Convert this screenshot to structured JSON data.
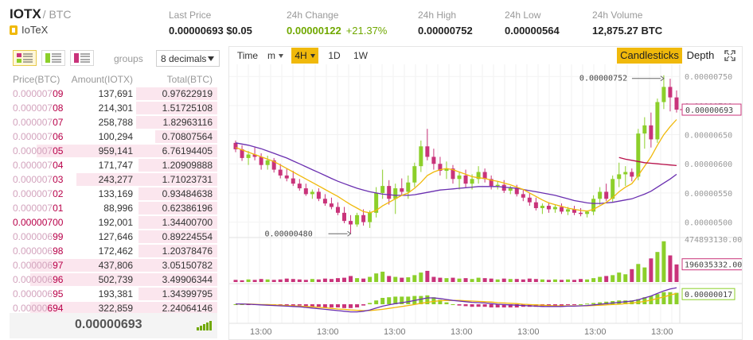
{
  "header": {
    "symbol": "IOTX",
    "quote": "/ BTC",
    "name": "IoTeX",
    "stats": [
      {
        "label": "Last Price",
        "value": "0.00000693",
        "extra": "$0.05"
      },
      {
        "label": "24h Change",
        "value": "0.00000122",
        "extra": "+21.37%"
      },
      {
        "label": "24h High",
        "value": "0.00000752"
      },
      {
        "label": "24h Low",
        "value": "0.00000564"
      },
      {
        "label": "24h Volume",
        "value": "12,875.27 BTC"
      }
    ]
  },
  "orderbook": {
    "groups_label": "groups",
    "groups_value": "8 decimals",
    "columns": [
      "Price(BTC)",
      "Amount(IOTX)",
      "Total(BTC)"
    ],
    "rows": [
      {
        "price_lo": "0.000007",
        "price_hi": "09",
        "amount": "137,691",
        "total": "0.97622919",
        "depth": 0.39
      },
      {
        "price_lo": "0.000007",
        "price_hi": "08",
        "amount": "214,301",
        "total": "1.51725108",
        "depth": 0.39
      },
      {
        "price_lo": "0.000007",
        "price_hi": "07",
        "amount": "258,788",
        "total": "1.82963116",
        "depth": 0.39
      },
      {
        "price_lo": "0.000007",
        "price_hi": "06",
        "amount": "100,294",
        "total": "0.70807564",
        "depth": 0.3
      },
      {
        "price_lo": "0.000007",
        "price_hi": "05",
        "amount": "959,141",
        "total": "6.76194405",
        "depth": 0.87
      },
      {
        "price_lo": "0.000007",
        "price_hi": "04",
        "amount": "171,747",
        "total": "1.20909888",
        "depth": 0.38
      },
      {
        "price_lo": "0.000007",
        "price_hi": "03",
        "amount": "243,277",
        "total": "1.71023731",
        "depth": 0.68
      },
      {
        "price_lo": "0.000007",
        "price_hi": "02",
        "amount": "133,169",
        "total": "0.93484638",
        "depth": 0.38
      },
      {
        "price_lo": "0.000007",
        "price_hi": "01",
        "amount": "88,996",
        "total": "0.62386196",
        "depth": 0.38
      },
      {
        "price_lo": "0.000007",
        "price_hi": "00",
        "amount": "192,001",
        "total": "1.34400700",
        "depth": 0.38,
        "all_dark": true
      },
      {
        "price_lo": "0.000006",
        "price_hi": "99",
        "amount": "127,646",
        "total": "0.89224554",
        "depth": 0.38
      },
      {
        "price_lo": "0.000006",
        "price_hi": "98",
        "amount": "172,462",
        "total": "1.20378476",
        "depth": 0.38
      },
      {
        "price_lo": "0.000006",
        "price_hi": "97",
        "amount": "437,806",
        "total": "3.05150782",
        "depth": 0.9
      },
      {
        "price_lo": "0.000006",
        "price_hi": "96",
        "amount": "502,739",
        "total": "3.49906344",
        "depth": 0.9
      },
      {
        "price_lo": "0.000006",
        "price_hi": "95",
        "amount": "193,381",
        "total": "1.34399795",
        "depth": 0.38
      },
      {
        "price_lo": "0.00000",
        "price_hi": "694",
        "amount": "322,859",
        "total": "2.24064146",
        "depth": 0.9
      }
    ],
    "last_price": "0.00000693"
  },
  "chart": {
    "intervals": [
      "Time",
      "m",
      "4H",
      "1D",
      "1W"
    ],
    "active_interval": "4H",
    "views": [
      "Candlesticks",
      "Depth"
    ],
    "active_view": "Candlesticks",
    "colors": {
      "up": "#8ccf2a",
      "down": "#c9337a",
      "ma1": "#f0b90b",
      "ma2": "#6a2fb0",
      "ma3": "#b8104a"
    },
    "price_axis": [
      "0.00000750",
      "0.00000700",
      "0.00000650",
      "0.00000600",
      "0.00000550",
      "0.00000500"
    ],
    "price_axis_values": [
      7.5e-06,
      7e-06,
      6.5e-06,
      6e-06,
      5.5e-06,
      5e-06
    ],
    "ylim": [
      4.79e-06,
      7.68e-06
    ],
    "current_price_label": "0.00000693",
    "current_price": 6.93e-06,
    "high_annotation": "0.00000752",
    "high_value": 7.52e-06,
    "low_annotation": "0.00000480",
    "low_value": 4.8e-06,
    "volume_axis_top": "474893130.00",
    "volume_current_label": "196035332.00",
    "volume_max": 474893130,
    "volume_current": 196035332,
    "macd_current_label": "0.00000017",
    "time_labels": [
      "13:00",
      "13:00",
      "13:00",
      "13:00",
      "13:00",
      "13:00",
      "13:00"
    ]
  },
  "chart_data": {
    "type": "candlestick",
    "candles": [
      {
        "o": 6.36e-06,
        "h": 6.4e-06,
        "l": 6.2e-06,
        "c": 6.25e-06
      },
      {
        "o": 6.25e-06,
        "h": 6.32e-06,
        "l": 6.05e-06,
        "c": 6.1e-06
      },
      {
        "o": 6.1e-06,
        "h": 6.22e-06,
        "l": 5.98e-06,
        "c": 6.16e-06
      },
      {
        "o": 6.16e-06,
        "h": 6.28e-06,
        "l": 6.06e-06,
        "c": 6.12e-06
      },
      {
        "o": 6.12e-06,
        "h": 6.18e-06,
        "l": 5.9e-06,
        "c": 5.98e-06
      },
      {
        "o": 5.98e-06,
        "h": 6.14e-06,
        "l": 5.9e-06,
        "c": 6.06e-06
      },
      {
        "o": 6.06e-06,
        "h": 6.1e-06,
        "l": 5.85e-06,
        "c": 5.9e-06
      },
      {
        "o": 5.9e-06,
        "h": 6e-06,
        "l": 5.75e-06,
        "c": 5.8e-06
      },
      {
        "o": 5.8e-06,
        "h": 5.92e-06,
        "l": 5.7e-06,
        "c": 5.75e-06
      },
      {
        "o": 5.75e-06,
        "h": 5.88e-06,
        "l": 5.62e-06,
        "c": 5.66e-06
      },
      {
        "o": 5.66e-06,
        "h": 5.74e-06,
        "l": 5.54e-06,
        "c": 5.58e-06
      },
      {
        "o": 5.58e-06,
        "h": 5.66e-06,
        "l": 5.45e-06,
        "c": 5.48e-06
      },
      {
        "o": 5.48e-06,
        "h": 5.56e-06,
        "l": 5.4e-06,
        "c": 5.52e-06
      },
      {
        "o": 5.52e-06,
        "h": 5.58e-06,
        "l": 5.36e-06,
        "c": 5.4e-06
      },
      {
        "o": 5.4e-06,
        "h": 5.48e-06,
        "l": 5.28e-06,
        "c": 5.32e-06
      },
      {
        "o": 5.32e-06,
        "h": 5.42e-06,
        "l": 5.22e-06,
        "c": 5.26e-06
      },
      {
        "o": 5.26e-06,
        "h": 5.34e-06,
        "l": 5.12e-06,
        "c": 5.16e-06
      },
      {
        "o": 5.16e-06,
        "h": 5.26e-06,
        "l": 4.98e-06,
        "c": 5.02e-06
      },
      {
        "o": 5.02e-06,
        "h": 5.12e-06,
        "l": 4.8e-06,
        "c": 4.96e-06
      },
      {
        "o": 4.96e-06,
        "h": 5.16e-06,
        "l": 4.92e-06,
        "c": 5.12e-06
      },
      {
        "o": 5.12e-06,
        "h": 5.22e-06,
        "l": 4.94e-06,
        "c": 5e-06
      },
      {
        "o": 5e-06,
        "h": 5.2e-06,
        "l": 4.9e-06,
        "c": 5.16e-06
      },
      {
        "o": 5.16e-06,
        "h": 5.6e-06,
        "l": 5.08e-06,
        "c": 5.5e-06
      },
      {
        "o": 5.5e-06,
        "h": 5.9e-06,
        "l": 5.4e-06,
        "c": 5.62e-06
      },
      {
        "o": 5.62e-06,
        "h": 5.72e-06,
        "l": 5.3e-06,
        "c": 5.4e-06
      },
      {
        "o": 5.4e-06,
        "h": 5.66e-06,
        "l": 5.14e-06,
        "c": 5.58e-06
      },
      {
        "o": 5.58e-06,
        "h": 5.75e-06,
        "l": 5.45e-06,
        "c": 5.52e-06
      },
      {
        "o": 5.52e-06,
        "h": 5.8e-06,
        "l": 5.4e-06,
        "c": 5.68e-06
      },
      {
        "o": 5.68e-06,
        "h": 6.02e-06,
        "l": 5.6e-06,
        "c": 5.96e-06
      },
      {
        "o": 5.96e-06,
        "h": 6.4e-06,
        "l": 5.86e-06,
        "c": 6.3e-06
      },
      {
        "o": 6.3e-06,
        "h": 6.6e-06,
        "l": 6.06e-06,
        "c": 6.12e-06
      },
      {
        "o": 6.12e-06,
        "h": 6.26e-06,
        "l": 5.9e-06,
        "c": 6e-06
      },
      {
        "o": 6e-06,
        "h": 6.12e-06,
        "l": 5.8e-06,
        "c": 5.88e-06
      },
      {
        "o": 5.88e-06,
        "h": 6.04e-06,
        "l": 5.74e-06,
        "c": 5.92e-06
      },
      {
        "o": 5.92e-06,
        "h": 5.98e-06,
        "l": 5.66e-06,
        "c": 5.74e-06
      },
      {
        "o": 5.74e-06,
        "h": 5.86e-06,
        "l": 5.56e-06,
        "c": 5.8e-06
      },
      {
        "o": 5.8e-06,
        "h": 5.9e-06,
        "l": 5.6e-06,
        "c": 5.66e-06
      },
      {
        "o": 5.66e-06,
        "h": 5.82e-06,
        "l": 5.56e-06,
        "c": 5.74e-06
      },
      {
        "o": 5.74e-06,
        "h": 5.96e-06,
        "l": 5.66e-06,
        "c": 5.86e-06
      },
      {
        "o": 5.86e-06,
        "h": 5.92e-06,
        "l": 5.68e-06,
        "c": 5.74e-06
      },
      {
        "o": 5.74e-06,
        "h": 5.8e-06,
        "l": 5.56e-06,
        "c": 5.62e-06
      },
      {
        "o": 5.62e-06,
        "h": 5.7e-06,
        "l": 5.56e-06,
        "c": 5.64e-06
      },
      {
        "o": 5.64e-06,
        "h": 5.72e-06,
        "l": 5.5e-06,
        "c": 5.54e-06
      },
      {
        "o": 5.54e-06,
        "h": 5.62e-06,
        "l": 5.48e-06,
        "c": 5.58e-06
      },
      {
        "o": 5.58e-06,
        "h": 5.64e-06,
        "l": 5.44e-06,
        "c": 5.48e-06
      },
      {
        "o": 5.48e-06,
        "h": 5.56e-06,
        "l": 5.36e-06,
        "c": 5.42e-06
      },
      {
        "o": 5.42e-06,
        "h": 5.5e-06,
        "l": 5.28e-06,
        "c": 5.34e-06
      },
      {
        "o": 5.34e-06,
        "h": 5.42e-06,
        "l": 5.2e-06,
        "c": 5.24e-06
      },
      {
        "o": 5.24e-06,
        "h": 5.32e-06,
        "l": 5.14e-06,
        "c": 5.28e-06
      },
      {
        "o": 5.28e-06,
        "h": 5.34e-06,
        "l": 5.16e-06,
        "c": 5.22e-06
      },
      {
        "o": 5.22e-06,
        "h": 5.3e-06,
        "l": 5.16e-06,
        "c": 5.26e-06
      },
      {
        "o": 5.26e-06,
        "h": 5.32e-06,
        "l": 5.14e-06,
        "c": 5.18e-06
      },
      {
        "o": 5.18e-06,
        "h": 5.26e-06,
        "l": 5.12e-06,
        "c": 5.22e-06
      },
      {
        "o": 5.22e-06,
        "h": 5.28e-06,
        "l": 5.12e-06,
        "c": 5.16e-06
      },
      {
        "o": 5.16e-06,
        "h": 5.24e-06,
        "l": 5.1e-06,
        "c": 5.14e-06
      },
      {
        "o": 5.14e-06,
        "h": 5.2e-06,
        "l": 5.08e-06,
        "c": 5.18e-06
      },
      {
        "o": 5.18e-06,
        "h": 5.46e-06,
        "l": 5.12e-06,
        "c": 5.4e-06
      },
      {
        "o": 5.4e-06,
        "h": 5.6e-06,
        "l": 5.3e-06,
        "c": 5.52e-06
      },
      {
        "o": 5.52e-06,
        "h": 5.66e-06,
        "l": 5.36e-06,
        "c": 5.4e-06
      },
      {
        "o": 5.4e-06,
        "h": 5.8e-06,
        "l": 5.34e-06,
        "c": 5.74e-06
      },
      {
        "o": 5.74e-06,
        "h": 6.02e-06,
        "l": 5.6e-06,
        "c": 5.82e-06
      },
      {
        "o": 5.82e-06,
        "h": 5.96e-06,
        "l": 5.62e-06,
        "c": 5.86e-06
      },
      {
        "o": 5.86e-06,
        "h": 5.92e-06,
        "l": 5.7e-06,
        "c": 5.78e-06
      },
      {
        "o": 5.78e-06,
        "h": 6.6e-06,
        "l": 5.72e-06,
        "c": 6.52e-06
      },
      {
        "o": 6.52e-06,
        "h": 6.8e-06,
        "l": 6.26e-06,
        "c": 6.66e-06
      },
      {
        "o": 6.66e-06,
        "h": 6.88e-06,
        "l": 6.28e-06,
        "c": 6.42e-06
      },
      {
        "o": 6.42e-06,
        "h": 7.12e-06,
        "l": 6.36e-06,
        "c": 7.06e-06
      },
      {
        "o": 7.06e-06,
        "h": 7.52e-06,
        "l": 6.94e-06,
        "c": 7.32e-06
      },
      {
        "o": 7.32e-06,
        "h": 7.46e-06,
        "l": 6.9e-06,
        "c": 7.14e-06
      },
      {
        "o": 7.14e-06,
        "h": 7.26e-06,
        "l": 6.88e-06,
        "c": 6.93e-06
      }
    ],
    "volumes": [
      0.05,
      0.04,
      0.06,
      0.05,
      0.07,
      0.06,
      0.05,
      0.06,
      0.08,
      0.07,
      0.06,
      0.05,
      0.07,
      0.06,
      0.08,
      0.07,
      0.09,
      0.1,
      0.14,
      0.09,
      0.08,
      0.12,
      0.2,
      0.24,
      0.14,
      0.12,
      0.1,
      0.11,
      0.16,
      0.22,
      0.26,
      0.12,
      0.1,
      0.09,
      0.1,
      0.08,
      0.09,
      0.07,
      0.1,
      0.09,
      0.08,
      0.06,
      0.08,
      0.07,
      0.07,
      0.06,
      0.08,
      0.07,
      0.06,
      0.05,
      0.06,
      0.05,
      0.06,
      0.05,
      0.07,
      0.06,
      0.09,
      0.12,
      0.14,
      0.16,
      0.22,
      0.18,
      0.3,
      0.42,
      0.34,
      0.55,
      0.7,
      0.95,
      0.62,
      0.41
    ],
    "ma7": [
      6.28e-06,
      6.24e-06,
      6.2e-06,
      6.16e-06,
      6.12e-06,
      6.08e-06,
      6.04e-06,
      5.98e-06,
      5.92e-06,
      5.86e-06,
      5.8e-06,
      5.74e-06,
      5.68e-06,
      5.62e-06,
      5.56e-06,
      5.5e-06,
      5.44e-06,
      5.37e-06,
      5.3e-06,
      5.24e-06,
      5.18e-06,
      5.16e-06,
      5.2e-06,
      5.28e-06,
      5.34e-06,
      5.4e-06,
      5.46e-06,
      5.5e-06,
      5.58e-06,
      5.68e-06,
      5.8e-06,
      5.86e-06,
      5.9e-06,
      5.92e-06,
      5.9e-06,
      5.86e-06,
      5.82e-06,
      5.78e-06,
      5.76e-06,
      5.75e-06,
      5.72e-06,
      5.7e-06,
      5.67e-06,
      5.64e-06,
      5.6e-06,
      5.56e-06,
      5.5e-06,
      5.44e-06,
      5.38e-06,
      5.33e-06,
      5.3e-06,
      5.27e-06,
      5.24e-06,
      5.22e-06,
      5.2e-06,
      5.19e-06,
      5.22e-06,
      5.28e-06,
      5.34e-06,
      5.42e-06,
      5.52e-06,
      5.6e-06,
      5.66e-06,
      5.8e-06,
      5.96e-06,
      6.12e-06,
      6.32e-06,
      6.5e-06,
      6.64e-06,
      6.76e-06
    ],
    "ma25": [
      6.36e-06,
      6.34e-06,
      6.32e-06,
      6.29e-06,
      6.26e-06,
      6.22e-06,
      6.18e-06,
      6.14e-06,
      6.1e-06,
      6.05e-06,
      6e-06,
      5.95e-06,
      5.9e-06,
      5.85e-06,
      5.8e-06,
      5.75e-06,
      5.7e-06,
      5.66e-06,
      5.62e-06,
      5.58e-06,
      5.55e-06,
      5.52e-06,
      5.5e-06,
      5.48e-06,
      5.47e-06,
      5.46e-06,
      5.46e-06,
      5.46e-06,
      5.47e-06,
      5.49e-06,
      5.51e-06,
      5.53e-06,
      5.55e-06,
      5.56e-06,
      5.57e-06,
      5.58e-06,
      5.59e-06,
      5.6e-06,
      5.61e-06,
      5.61e-06,
      5.61e-06,
      5.61e-06,
      5.6e-06,
      5.59e-06,
      5.58e-06,
      5.56e-06,
      5.54e-06,
      5.52e-06,
      5.5e-06,
      5.48e-06,
      5.46e-06,
      5.43e-06,
      5.4e-06,
      5.37e-06,
      5.35e-06,
      5.33e-06,
      5.32e-06,
      5.32e-06,
      5.33e-06,
      5.34e-06,
      5.36e-06,
      5.38e-06,
      5.4e-06,
      5.44e-06,
      5.48e-06,
      5.53e-06,
      5.6e-06,
      5.67e-06,
      5.74e-06,
      5.82e-06
    ],
    "ma99_start_index": 60,
    "ma99": [
      6.11e-06,
      6.08e-06,
      6.06e-06,
      6.04e-06,
      6.02e-06,
      6.01e-06,
      6e-06,
      5.99e-06,
      5.98e-06,
      5.97e-06
    ],
    "macd_dif": [
      0.01,
      0.01,
      0,
      -0.01,
      -0.02,
      -0.03,
      -0.04,
      -0.05,
      -0.06,
      -0.07,
      -0.08,
      -0.1,
      -0.12,
      -0.14,
      -0.16,
      -0.18,
      -0.2,
      -0.22,
      -0.24,
      -0.24,
      -0.22,
      -0.18,
      -0.12,
      -0.06,
      -0.02,
      0.02,
      0.05,
      0.08,
      0.12,
      0.16,
      0.2,
      0.2,
      0.18,
      0.15,
      0.12,
      0.1,
      0.08,
      0.06,
      0.05,
      0.04,
      0.02,
      0,
      -0.01,
      -0.02,
      -0.03,
      -0.04,
      -0.05,
      -0.06,
      -0.07,
      -0.07,
      -0.07,
      -0.07,
      -0.06,
      -0.06,
      -0.05,
      -0.04,
      -0.02,
      0,
      0.02,
      0.04,
      0.06,
      0.08,
      0.1,
      0.14,
      0.2,
      0.26,
      0.34,
      0.42,
      0.48,
      0.52
    ],
    "macd_dea": [
      0.01,
      0.01,
      0.01,
      0,
      -0.01,
      -0.01,
      -0.02,
      -0.03,
      -0.04,
      -0.05,
      -0.06,
      -0.07,
      -0.08,
      -0.1,
      -0.11,
      -0.13,
      -0.15,
      -0.16,
      -0.18,
      -0.19,
      -0.2,
      -0.2,
      -0.18,
      -0.16,
      -0.13,
      -0.1,
      -0.07,
      -0.04,
      -0.01,
      0.03,
      0.06,
      0.09,
      0.11,
      0.12,
      0.12,
      0.12,
      0.11,
      0.1,
      0.09,
      0.08,
      0.07,
      0.05,
      0.04,
      0.03,
      0.02,
      0,
      -0.01,
      -0.02,
      -0.03,
      -0.04,
      -0.05,
      -0.05,
      -0.05,
      -0.05,
      -0.05,
      -0.05,
      -0.04,
      -0.03,
      -0.02,
      -0.01,
      0,
      0.02,
      0.04,
      0.06,
      0.09,
      0.13,
      0.18,
      0.23,
      0.29,
      0.34
    ]
  }
}
